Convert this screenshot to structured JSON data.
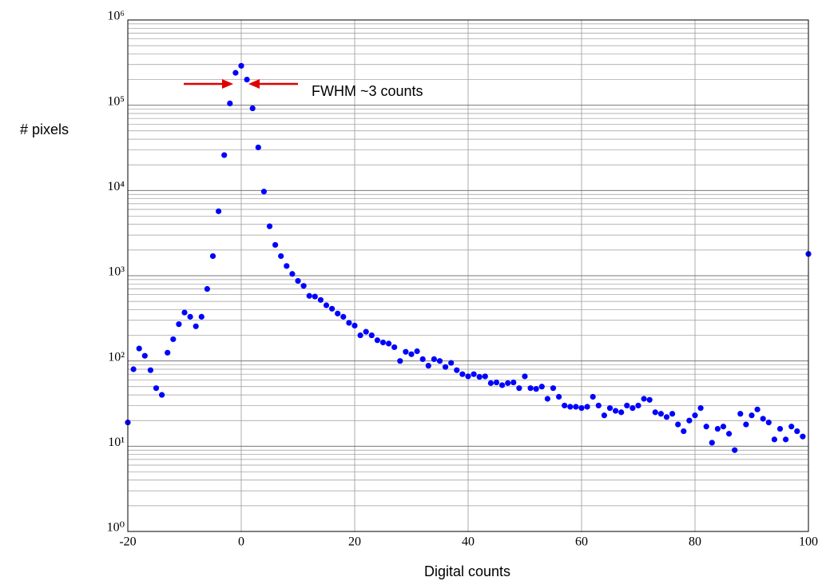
{
  "chart_data": {
    "type": "scatter",
    "xlabel": "Digital counts",
    "ylabel": "# pixels",
    "annotation": "FWHM ~3 counts",
    "log_y": true,
    "grid": true,
    "minor_grid": true,
    "color": "#0000ff",
    "xlim": [
      -20,
      100
    ],
    "xticks": [
      -20,
      0,
      20,
      40,
      60,
      80,
      100
    ],
    "ylim": [
      1,
      1000000
    ],
    "yticks": [
      {
        "value": 1,
        "label": "10⁰"
      },
      {
        "value": 10,
        "label": "10¹"
      },
      {
        "value": 100,
        "label": "10²"
      },
      {
        "value": 1000,
        "label": "10³"
      },
      {
        "value": 10000,
        "label": "10⁴"
      },
      {
        "value": 100000,
        "label": "10⁵"
      },
      {
        "value": 1000000,
        "label": "10⁶"
      }
    ],
    "x": [
      -20,
      -19,
      -18,
      -17,
      -16,
      -15,
      -14,
      -13,
      -12,
      -11,
      -10,
      -9,
      -8,
      -7,
      -6,
      -5,
      -4,
      -3,
      -2,
      -1,
      0,
      1,
      2,
      3,
      4,
      5,
      6,
      7,
      8,
      9,
      10,
      11,
      12,
      13,
      14,
      15,
      16,
      17,
      18,
      19,
      20,
      21,
      22,
      23,
      24,
      25,
      26,
      27,
      28,
      29,
      30,
      31,
      32,
      33,
      34,
      35,
      36,
      37,
      38,
      39,
      40,
      41,
      42,
      43,
      44,
      45,
      46,
      47,
      48,
      49,
      50,
      51,
      52,
      53,
      54,
      55,
      56,
      57,
      58,
      59,
      60,
      61,
      62,
      63,
      64,
      65,
      66,
      67,
      68,
      69,
      70,
      71,
      72,
      73,
      74,
      75,
      76,
      77,
      78,
      79,
      80,
      81,
      82,
      83,
      84,
      85,
      86,
      87,
      88,
      89,
      90,
      91,
      92,
      93,
      94,
      95,
      96,
      97,
      98,
      99,
      100
    ],
    "values": [
      19,
      80,
      140,
      115,
      78,
      48,
      40,
      125,
      180,
      270,
      370,
      330,
      255,
      330,
      700,
      1700,
      5700,
      26000,
      105000,
      240000,
      290000,
      200000,
      92000,
      32000,
      9700,
      3800,
      2300,
      1700,
      1300,
      1050,
      870,
      760,
      580,
      570,
      520,
      450,
      410,
      360,
      330,
      280,
      260,
      200,
      220,
      200,
      175,
      165,
      160,
      145,
      100,
      128,
      120,
      130,
      105,
      88,
      105,
      100,
      85,
      95,
      78,
      70,
      66,
      70,
      65,
      66,
      55,
      56,
      52,
      55,
      56,
      48,
      66,
      48,
      47,
      50,
      36,
      48,
      38,
      30,
      29,
      29,
      28,
      29,
      38,
      30,
      23,
      28,
      26,
      25,
      30,
      28,
      30,
      36,
      35,
      25,
      24,
      22,
      24,
      18,
      15,
      20,
      23,
      28,
      17,
      11,
      16,
      17,
      14,
      9,
      24,
      18,
      23,
      27,
      21,
      19,
      12,
      16,
      12,
      17,
      15,
      13,
      1800
    ]
  }
}
